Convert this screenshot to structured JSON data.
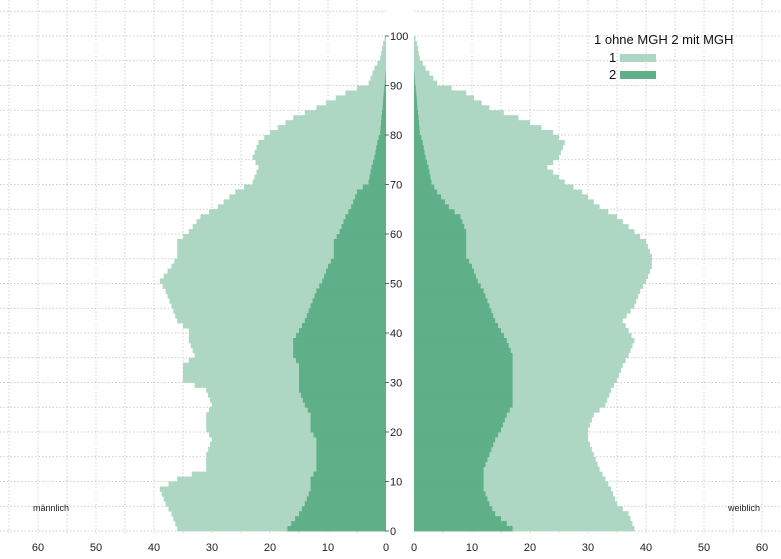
{
  "chart_data": {
    "type": "bar",
    "orientation": "population-pyramid",
    "title": "",
    "xlabel": "",
    "ylabel": "",
    "age_ticks": [
      "0",
      "10",
      "20",
      "30",
      "40",
      "50",
      "60",
      "70",
      "80",
      "90",
      "100"
    ],
    "x_ticks_left": [
      "60",
      "50",
      "40",
      "30",
      "20",
      "10",
      "0"
    ],
    "x_ticks_right": [
      "0",
      "10",
      "20",
      "30",
      "40",
      "50",
      "60"
    ],
    "xlim": [
      0,
      65
    ],
    "ylim": [
      0,
      105
    ],
    "grid": true,
    "legend": {
      "placement": "top-right",
      "header": "1 ohne MGH 2 mit MGH",
      "entries": [
        {
          "label": "1",
          "color": "#aed7c3"
        },
        {
          "label": "2",
          "color": "#5faf89"
        }
      ]
    },
    "side_labels": {
      "left": "männlich",
      "right": "weiblich"
    },
    "age_keypoints": [
      0,
      3,
      5,
      8,
      10,
      12,
      15,
      18,
      20,
      23,
      25,
      28,
      30,
      33,
      35,
      38,
      40,
      42,
      45,
      48,
      50,
      53,
      55,
      58,
      60,
      63,
      65,
      68,
      70,
      73,
      75,
      78,
      80,
      83,
      85,
      88,
      90,
      93,
      95,
      98,
      100
    ],
    "series": [
      {
        "name": "1",
        "sex": "männlich",
        "color": "#aed7c3",
        "values": [
          36,
          37,
          38,
          39,
          36,
          31,
          31,
          30,
          31,
          31,
          30,
          31,
          35,
          35,
          33,
          34,
          34,
          36,
          37,
          38,
          39,
          37,
          36,
          36,
          34,
          32,
          29,
          26,
          23,
          22,
          23,
          22,
          20,
          16,
          12,
          7,
          3,
          2,
          1,
          0.5,
          0
        ]
      },
      {
        "name": "2",
        "sex": "männlich",
        "color": "#5faf89",
        "values": [
          17,
          15,
          14,
          13,
          13,
          12,
          12,
          12,
          13,
          13,
          14,
          15,
          15,
          15,
          16,
          16,
          15,
          14,
          13,
          12,
          11,
          10,
          9,
          9,
          8,
          7,
          6,
          5,
          3,
          2.5,
          2,
          1.5,
          1,
          0.8,
          0.6,
          0.4,
          0.2,
          0,
          0,
          0,
          0
        ]
      },
      {
        "name": "1",
        "sex": "weiblich",
        "color": "#aed7c3",
        "values": [
          38,
          37,
          35,
          34,
          33,
          32,
          31,
          30,
          30,
          31,
          33,
          34,
          35,
          36,
          37,
          38,
          37,
          36,
          38,
          39,
          40,
          41,
          41,
          40,
          38,
          35,
          32,
          29,
          26,
          23,
          25,
          26,
          24,
          18,
          13,
          9,
          4,
          2,
          1,
          0.5,
          0
        ]
      },
      {
        "name": "2",
        "sex": "weiblich",
        "color": "#5faf89",
        "values": [
          17,
          14,
          13,
          12,
          12,
          12,
          13,
          14,
          15,
          16,
          17,
          17,
          17,
          17,
          17,
          16,
          15,
          14,
          13,
          12,
          11,
          10,
          9,
          9,
          9,
          8,
          6,
          4,
          3,
          2.5,
          2,
          1.5,
          1,
          0.8,
          0.6,
          0.4,
          0.2,
          0,
          0,
          0,
          0
        ]
      }
    ]
  }
}
